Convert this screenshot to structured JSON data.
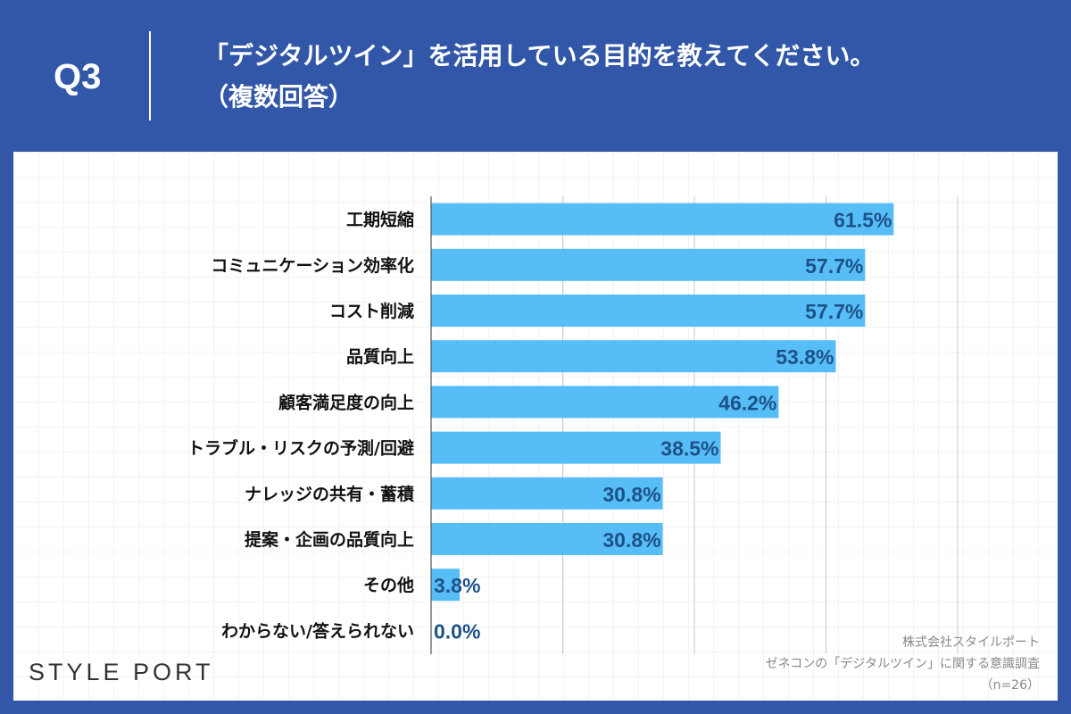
{
  "header": {
    "q": "Q3",
    "title_line1": "「デジタルツイン」を活用している目的を教えてください。",
    "title_line2": "（複数回答）"
  },
  "chart_data": {
    "type": "bar",
    "orientation": "horizontal",
    "categories": [
      "工期短縮",
      "コミュニケーション効率化",
      "コスト削減",
      "品質向上",
      "顧客満足度の向上",
      "トラブル・リスクの予測/回避",
      "ナレッジの共有・蓄積",
      "提案・企画の品質向上",
      "その他",
      "わからない/答えられない"
    ],
    "values": [
      61.5,
      57.7,
      57.7,
      53.8,
      46.2,
      38.5,
      30.8,
      30.8,
      3.8,
      0.0
    ],
    "labels": [
      "61.5%",
      "57.7%",
      "57.7%",
      "53.8%",
      "46.2%",
      "38.5%",
      "30.8%",
      "30.8%",
      "3.8%",
      "0.0%"
    ],
    "xlim": [
      0,
      70
    ],
    "grid": true,
    "bar_color": "#57bdf7",
    "label_color": "#1d5288"
  },
  "footer": {
    "logo": "STYLE PORT",
    "source1": "株式会社スタイルポート",
    "source2": "ゼネコンの「デジタルツイン」に関する意識調査",
    "source3": "（n=26）"
  }
}
